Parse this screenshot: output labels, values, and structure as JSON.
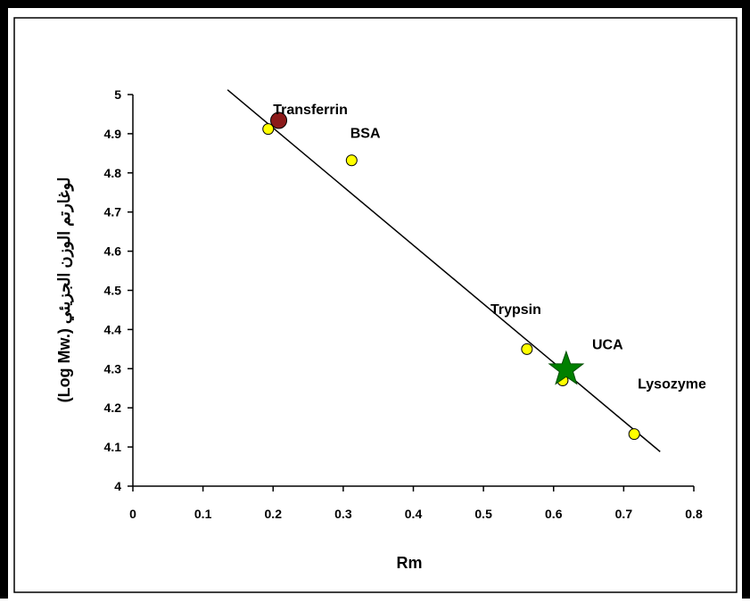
{
  "chart_data": {
    "type": "scatter",
    "xlabel": "Rm",
    "ylabel": "(Log Mw.) لوغارتم الوزن الجزيئي",
    "xlim": [
      0,
      0.8
    ],
    "ylim": [
      4,
      5
    ],
    "x_ticks": [
      "0",
      "0.1",
      "0.2",
      "0.3",
      "0.4",
      "0.5",
      "0.6",
      "0.7",
      "0.8"
    ],
    "y_ticks": [
      "4",
      "4.1",
      "4.2",
      "4.3",
      "4.4",
      "4.5",
      "4.6",
      "4.7",
      "4.8",
      "4.9",
      "5"
    ],
    "grid": false,
    "legend": "none",
    "series": [
      {
        "marker": "circle",
        "color": "#ffff00",
        "points": [
          {
            "x": 0.193,
            "y": 4.912
          },
          {
            "x": 0.312,
            "y": 4.832
          },
          {
            "x": 0.562,
            "y": 4.35
          },
          {
            "x": 0.613,
            "y": 4.27
          },
          {
            "x": 0.715,
            "y": 4.133
          }
        ]
      },
      {
        "marker": "circle",
        "color": "#8b1a1a",
        "points": [
          {
            "x": 0.208,
            "y": 4.934
          }
        ]
      },
      {
        "marker": "star",
        "color": "#008000",
        "points": [
          {
            "x": 0.618,
            "y": 4.298
          }
        ]
      }
    ],
    "trendline": {
      "from": {
        "x": 0.135,
        "y": 5.012
      },
      "to": {
        "x": 0.752,
        "y": 4.088
      }
    },
    "annotations": [
      {
        "text": "Transferrin",
        "x": 0.2,
        "y": 4.95
      },
      {
        "text": "BSA",
        "x": 0.31,
        "y": 4.89
      },
      {
        "text": "Trypsin",
        "x": 0.51,
        "y": 4.44
      },
      {
        "text": "UCA",
        "x": 0.655,
        "y": 4.35
      },
      {
        "text": "Lysozyme",
        "x": 0.72,
        "y": 4.25
      }
    ]
  }
}
